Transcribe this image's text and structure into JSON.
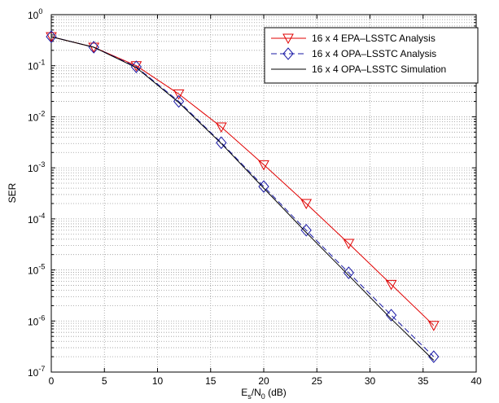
{
  "chart_data": {
    "type": "line",
    "title": "",
    "xlabel_main": "E",
    "xlabel_sub1": "s",
    "xlabel_mid": "/N",
    "xlabel_sub2": "0",
    "xlabel_tail": " (dB)",
    "ylabel": "SER",
    "xlim": [
      0,
      40
    ],
    "ylim": [
      1e-07,
      1
    ],
    "y_scale": "log",
    "grid": true,
    "legend_position": "top-right",
    "x_ticks": [
      "0",
      "5",
      "10",
      "15",
      "20",
      "25",
      "30",
      "35",
      "40"
    ],
    "y_tick_base": "10",
    "y_tick_exponents": [
      "0",
      "-1",
      "-2",
      "-3",
      "-4",
      "-5",
      "-6",
      "-7"
    ],
    "series": [
      {
        "name": "16 x 4 EPA–LSSTC Analysis",
        "color": "#e00000",
        "marker": "triangle-down",
        "line": "solid",
        "x": [
          0,
          4,
          8,
          12,
          16,
          20,
          24,
          28,
          32,
          36
        ],
        "y": [
          0.37,
          0.23,
          0.1,
          0.028,
          0.0063,
          0.00115,
          0.0002,
          3.3e-05,
          5.2e-06,
          8.2e-07
        ]
      },
      {
        "name": "16 x 4 OPA–LSSTC Analysis",
        "color": "#1a1aa6",
        "marker": "diamond",
        "line": "dashed",
        "x": [
          0,
          4,
          8,
          12,
          16,
          20,
          24,
          28,
          32,
          36
        ],
        "y": [
          0.37,
          0.23,
          0.095,
          0.02,
          0.0031,
          0.00043,
          6e-05,
          8.8e-06,
          1.3e-06,
          2e-07
        ]
      },
      {
        "name": "16 x 4 OPA–LSSTC Simulation",
        "color": "#000000",
        "marker": "none",
        "line": "solid",
        "x": [
          0,
          4,
          8,
          12,
          16,
          20,
          24,
          28,
          32,
          36
        ],
        "y": [
          0.37,
          0.23,
          0.092,
          0.019,
          0.003,
          0.0004,
          5.4e-05,
          7.8e-06,
          1.1e-06,
          1.7e-07
        ]
      }
    ]
  }
}
